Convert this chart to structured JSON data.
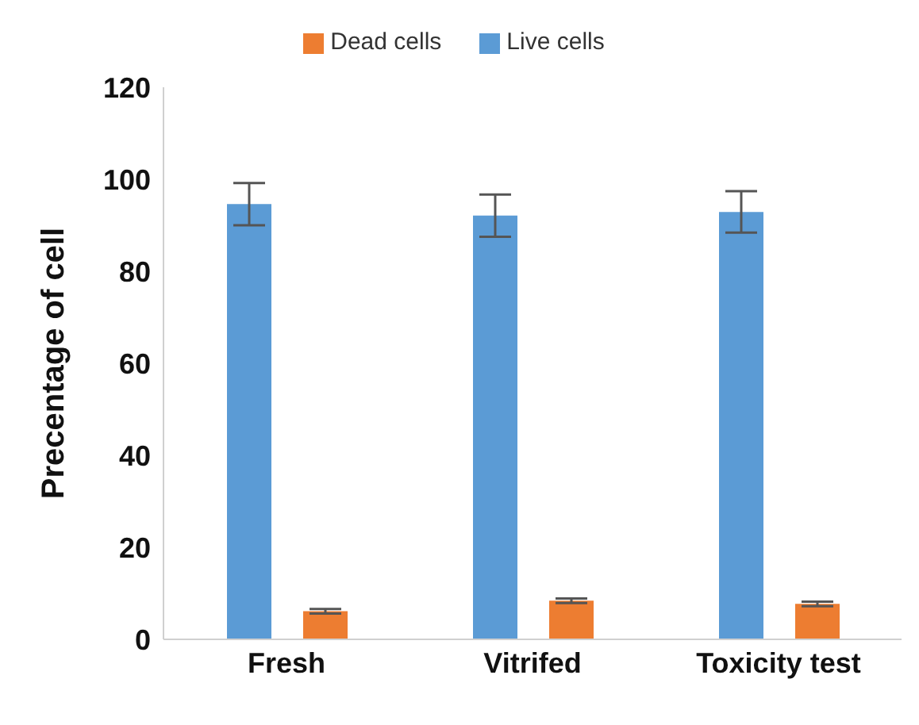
{
  "chart_data": {
    "type": "bar",
    "ylabel": "Precentage of cell",
    "categories": [
      "Fresh",
      "Vitrifed",
      "Toxicity test"
    ],
    "series": [
      {
        "name": "Live cells",
        "color": "#5b9bd5",
        "values": [
          94.6,
          92.1,
          92.9
        ],
        "errors": [
          4.6,
          4.6,
          4.5
        ]
      },
      {
        "name": "Dead cells",
        "color": "#ed7d31",
        "values": [
          6.1,
          8.4,
          7.7
        ],
        "errors": [
          0.5,
          0.5,
          0.5
        ]
      }
    ],
    "ylim": [
      0,
      120
    ],
    "yticks": [
      0,
      20,
      40,
      60,
      80,
      100,
      120
    ],
    "grid": false,
    "legend": "top"
  }
}
